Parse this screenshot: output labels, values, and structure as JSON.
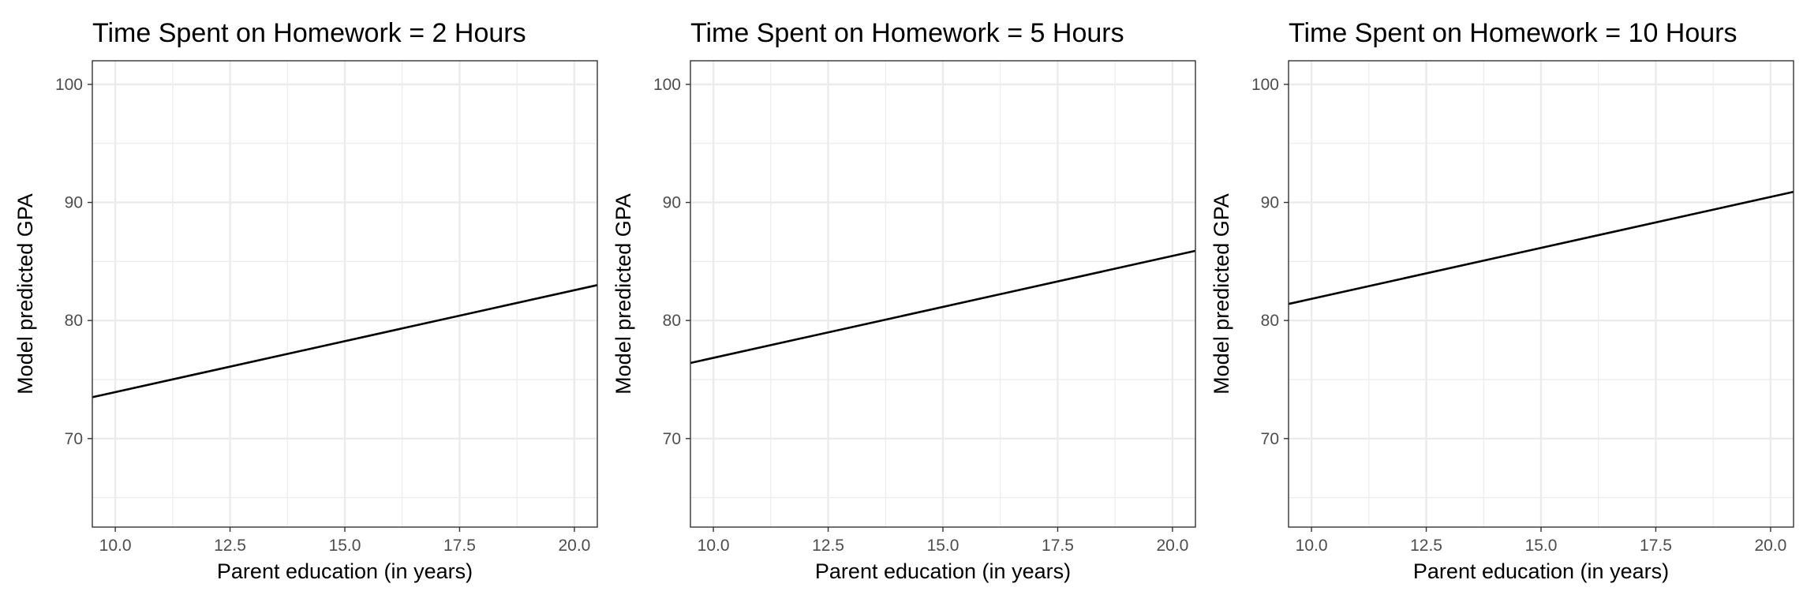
{
  "chart_data": [
    {
      "type": "line",
      "title": "Time Spent on Homework = 2 Hours",
      "xlabel": "Parent education (in years)",
      "ylabel": "Model predicted GPA",
      "xlim": [
        9.5,
        20.5
      ],
      "ylim": [
        62.5,
        102
      ],
      "x_ticks": [
        "10.0",
        "12.5",
        "15.0",
        "17.5",
        "20.0"
      ],
      "y_ticks": [
        "70",
        "80",
        "90",
        "100"
      ],
      "grid": true,
      "series": [
        {
          "x": [
            9.5,
            20.5
          ],
          "y": [
            73.5,
            83.0
          ]
        }
      ]
    },
    {
      "type": "line",
      "title": "Time Spent on Homework = 5 Hours",
      "xlabel": "Parent education (in years)",
      "ylabel": "Model predicted GPA",
      "xlim": [
        9.5,
        20.5
      ],
      "ylim": [
        62.5,
        102
      ],
      "x_ticks": [
        "10.0",
        "12.5",
        "15.0",
        "17.5",
        "20.0"
      ],
      "y_ticks": [
        "70",
        "80",
        "90",
        "100"
      ],
      "grid": true,
      "series": [
        {
          "x": [
            9.5,
            20.5
          ],
          "y": [
            76.4,
            85.9
          ]
        }
      ]
    },
    {
      "type": "line",
      "title": "Time Spent on Homework = 10 Hours",
      "xlabel": "Parent education (in years)",
      "ylabel": "Model predicted GPA",
      "xlim": [
        9.5,
        20.5
      ],
      "ylim": [
        62.5,
        102
      ],
      "x_ticks": [
        "10.0",
        "12.5",
        "15.0",
        "17.5",
        "20.0"
      ],
      "y_ticks": [
        "70",
        "80",
        "90",
        "100"
      ],
      "grid": true,
      "series": [
        {
          "x": [
            9.5,
            20.5
          ],
          "y": [
            81.4,
            90.9
          ]
        }
      ]
    }
  ]
}
